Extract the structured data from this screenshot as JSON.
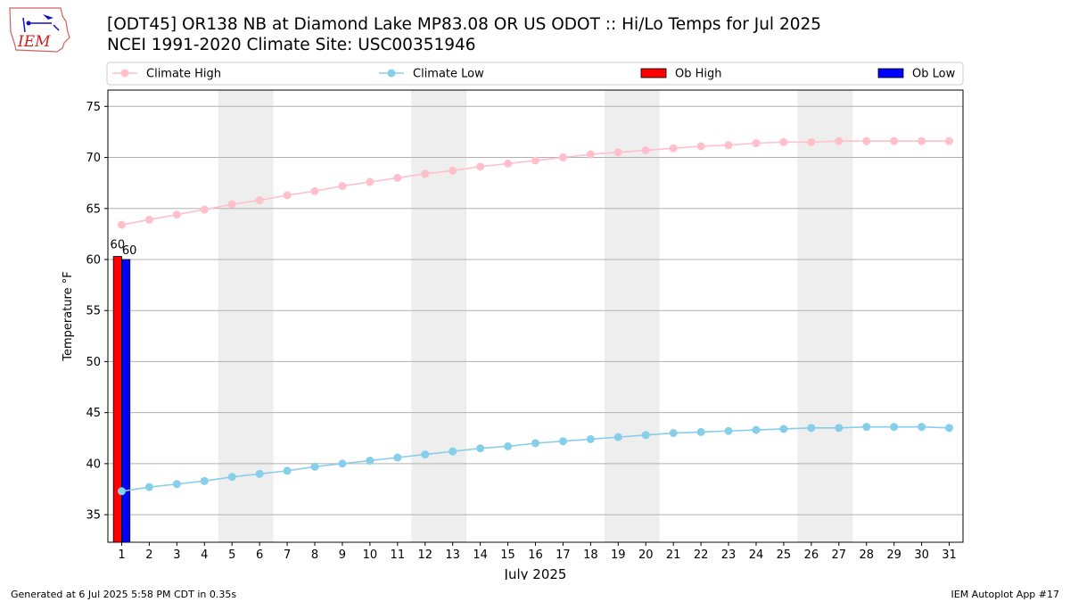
{
  "header": {
    "title_line1": "[ODT45] OR138 NB at Diamond Lake MP83.08 OR US ODOT :: Hi/Lo Temps for Jul 2025",
    "title_line2": "NCEI 1991-2020 Climate Site: USC00351946",
    "logo_text": "IEM"
  },
  "footer": {
    "left": "Generated at 6 Jul 2025 5:58 PM CDT in 0.35s",
    "right": "IEM Autoplot App #17"
  },
  "chart_data": {
    "type": "bar",
    "title": "[ODT45] OR138 NB at Diamond Lake MP83.08 OR US ODOT :: Hi/Lo Temps for Jul 2025",
    "subtitle": "NCEI 1991-2020 Climate Site: USC00351946",
    "xlabel": "July 2025",
    "ylabel": "Temperature °F",
    "xlim": [
      0.5,
      31.5
    ],
    "ylim": [
      32.3,
      76.6
    ],
    "yticks": [
      35,
      40,
      45,
      50,
      55,
      60,
      65,
      70,
      75
    ],
    "x": [
      1,
      2,
      3,
      4,
      5,
      6,
      7,
      8,
      9,
      10,
      11,
      12,
      13,
      14,
      15,
      16,
      17,
      18,
      19,
      20,
      21,
      22,
      23,
      24,
      25,
      26,
      27,
      28,
      29,
      30,
      31
    ],
    "grid": "horizontal",
    "legend_placement": "top",
    "weekend_shading": [
      [
        4.5,
        6.5
      ],
      [
        11.5,
        13.5
      ],
      [
        18.5,
        20.5
      ],
      [
        25.5,
        27.5
      ]
    ],
    "series": [
      {
        "name": "Climate High",
        "kind": "line",
        "color": "#ffc0cb",
        "values": [
          63.4,
          63.9,
          64.4,
          64.9,
          65.4,
          65.8,
          66.3,
          66.7,
          67.2,
          67.6,
          68.0,
          68.4,
          68.7,
          69.1,
          69.4,
          69.7,
          70.0,
          70.3,
          70.5,
          70.7,
          70.9,
          71.1,
          71.2,
          71.4,
          71.5,
          71.5,
          71.6,
          71.6,
          71.6,
          71.6,
          71.6
        ]
      },
      {
        "name": "Climate Low",
        "kind": "line",
        "color": "#87ceeb",
        "values": [
          37.3,
          37.7,
          38.0,
          38.3,
          38.7,
          39.0,
          39.3,
          39.7,
          40.0,
          40.3,
          40.6,
          40.9,
          41.2,
          41.5,
          41.7,
          42.0,
          42.2,
          42.4,
          42.6,
          42.8,
          43.0,
          43.1,
          43.2,
          43.3,
          43.4,
          43.5,
          43.5,
          43.6,
          43.6,
          43.6,
          43.5
        ]
      },
      {
        "name": "Ob High",
        "kind": "bar",
        "color": "#ff0000",
        "data": [
          {
            "x": 1,
            "value": 60.3,
            "label": "60"
          }
        ]
      },
      {
        "name": "Ob Low",
        "kind": "bar",
        "color": "#0000ff",
        "data": [
          {
            "x": 1,
            "value": 60,
            "label": "60"
          }
        ]
      }
    ]
  }
}
